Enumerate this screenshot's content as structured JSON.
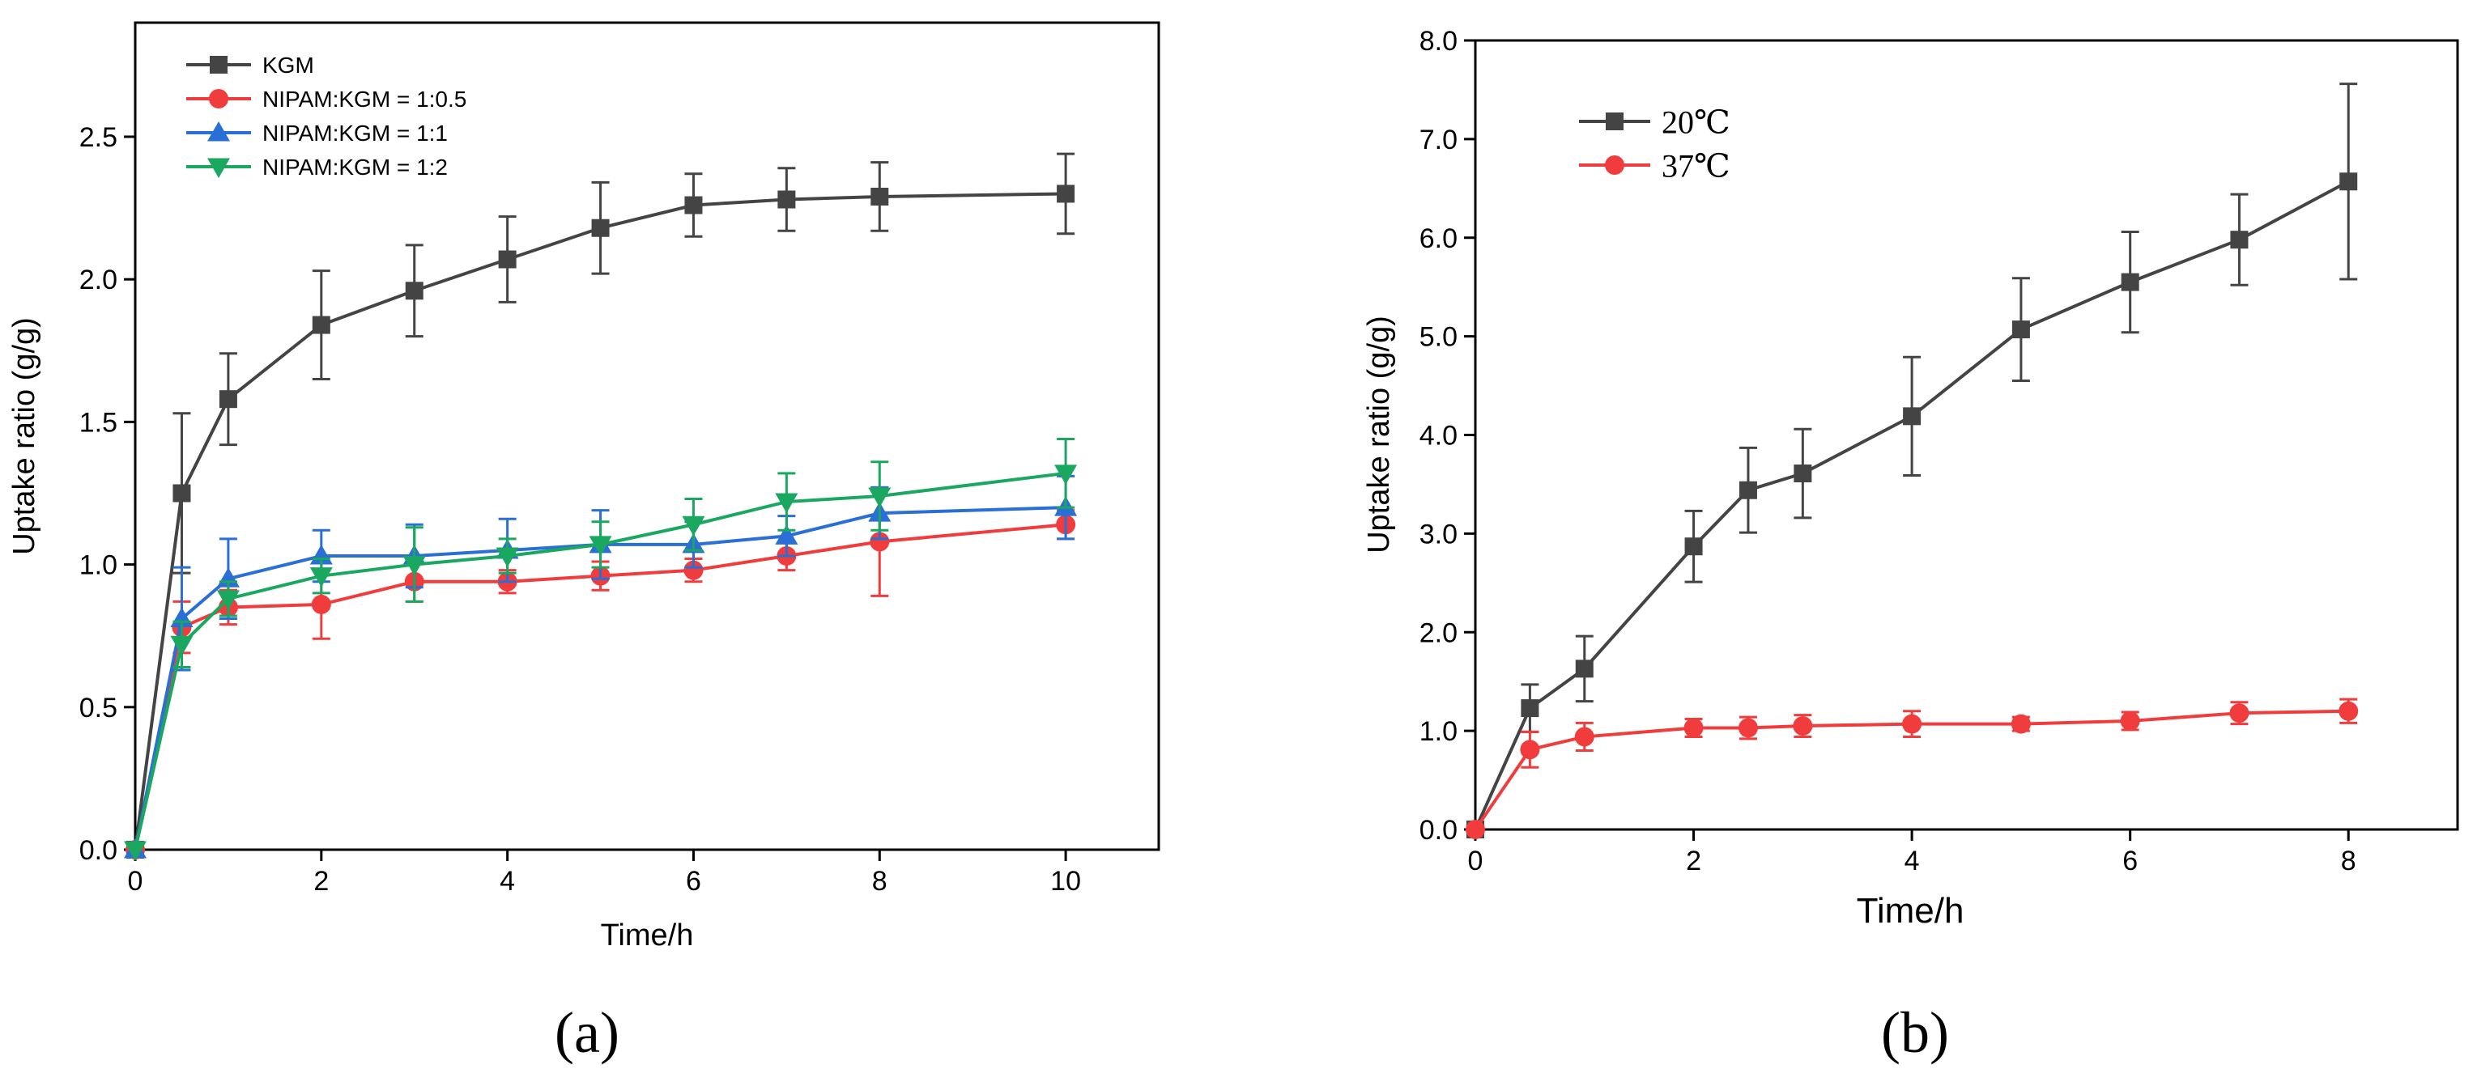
{
  "chart_data": [
    {
      "id": "a",
      "type": "line",
      "panel_label": "(a)",
      "xlabel": "Time/h",
      "ylabel": "Uptake ratio (g/g)",
      "xlim": [
        0,
        11
      ],
      "ylim": [
        0,
        2.9
      ],
      "xticks": [
        0,
        2,
        4,
        6,
        8,
        10
      ],
      "xtick_labels": [
        "0",
        "2",
        "4",
        "6",
        "8",
        "10"
      ],
      "yticks": [
        0,
        0.5,
        1.0,
        1.5,
        2.0,
        2.5
      ],
      "ytick_labels": [
        "0.0",
        "0.5",
        "1.0",
        "1.5",
        "2.0",
        "2.5"
      ],
      "legend_position": "top-left",
      "series": [
        {
          "name": "KGM",
          "color": "#444444",
          "marker": "square",
          "x": [
            0,
            0.5,
            1,
            2,
            3,
            4,
            5,
            6,
            7,
            8,
            10
          ],
          "y": [
            0,
            1.25,
            1.58,
            1.84,
            1.96,
            2.07,
            2.18,
            2.26,
            2.28,
            2.29,
            2.3
          ],
          "err": [
            0,
            0.28,
            0.16,
            0.19,
            0.16,
            0.15,
            0.16,
            0.11,
            0.11,
            0.12,
            0.14
          ]
        },
        {
          "name": "NIPAM:KGM = 1:0.5",
          "color": "#f03c3c",
          "marker": "circle",
          "x": [
            0,
            0.5,
            1,
            2,
            3,
            4,
            5,
            6,
            7,
            8,
            10
          ],
          "y": [
            0,
            0.78,
            0.85,
            0.86,
            0.94,
            0.94,
            0.96,
            0.98,
            1.03,
            1.08,
            1.14
          ],
          "err": [
            0,
            0.09,
            0.06,
            0.12,
            0.07,
            0.04,
            0.05,
            0.04,
            0.05,
            0.19,
            0.05
          ]
        },
        {
          "name": "NIPAM:KGM = 1:1",
          "color": "#2a6fd6",
          "marker": "triangle-up",
          "x": [
            0,
            0.5,
            1,
            2,
            3,
            4,
            5,
            6,
            7,
            8,
            10
          ],
          "y": [
            0,
            0.81,
            0.95,
            1.03,
            1.03,
            1.05,
            1.07,
            1.07,
            1.1,
            1.18,
            1.2
          ],
          "err": [
            0,
            0.18,
            0.14,
            0.09,
            0.11,
            0.11,
            0.12,
            0.08,
            0.07,
            0.09,
            0.11
          ]
        },
        {
          "name": "NIPAM:KGM = 1:2",
          "color": "#1aa860",
          "marker": "triangle-down",
          "x": [
            0,
            0.5,
            1,
            2,
            3,
            4,
            5,
            6,
            7,
            8,
            10
          ],
          "y": [
            0,
            0.72,
            0.88,
            0.96,
            1.0,
            1.03,
            1.07,
            1.14,
            1.22,
            1.24,
            1.32
          ],
          "err": [
            0,
            0.08,
            0.06,
            0.06,
            0.13,
            0.06,
            0.08,
            0.09,
            0.1,
            0.12,
            0.12
          ]
        }
      ]
    },
    {
      "id": "b",
      "type": "line",
      "panel_label": "(b)",
      "xlabel": "Time/h",
      "ylabel": "Uptake ratio (g/g)",
      "xlim": [
        0,
        9
      ],
      "ylim": [
        0,
        8.0
      ],
      "xticks": [
        0,
        2,
        4,
        6,
        8
      ],
      "xtick_labels": [
        "0",
        "2",
        "4",
        "6",
        "8"
      ],
      "yticks": [
        0,
        1,
        2,
        3,
        4,
        5,
        6,
        7,
        8
      ],
      "ytick_labels": [
        "0.0",
        "1.0",
        "2.0",
        "3.0",
        "4.0",
        "5.0",
        "6.0",
        "7.0",
        "8.0"
      ],
      "legend_position": "top-left",
      "series": [
        {
          "name": "20℃",
          "color": "#444444",
          "marker": "square",
          "x": [
            0,
            0.5,
            1,
            2,
            2.5,
            3,
            4,
            5,
            6,
            7,
            8
          ],
          "y": [
            0,
            1.23,
            1.63,
            2.87,
            3.44,
            3.61,
            4.19,
            5.07,
            5.55,
            5.98,
            6.57
          ],
          "err": [
            0,
            0.24,
            0.33,
            0.36,
            0.43,
            0.45,
            0.6,
            0.52,
            0.51,
            0.46,
            0.99
          ]
        },
        {
          "name": "37℃",
          "color": "#f03c3c",
          "marker": "circle",
          "x": [
            0,
            0.5,
            1,
            2,
            2.5,
            3,
            4,
            5,
            6,
            7,
            8
          ],
          "y": [
            0,
            0.81,
            0.94,
            1.03,
            1.03,
            1.05,
            1.07,
            1.07,
            1.1,
            1.18,
            1.2
          ],
          "err": [
            0,
            0.18,
            0.14,
            0.09,
            0.11,
            0.11,
            0.13,
            0.07,
            0.09,
            0.11,
            0.12
          ]
        }
      ]
    }
  ]
}
